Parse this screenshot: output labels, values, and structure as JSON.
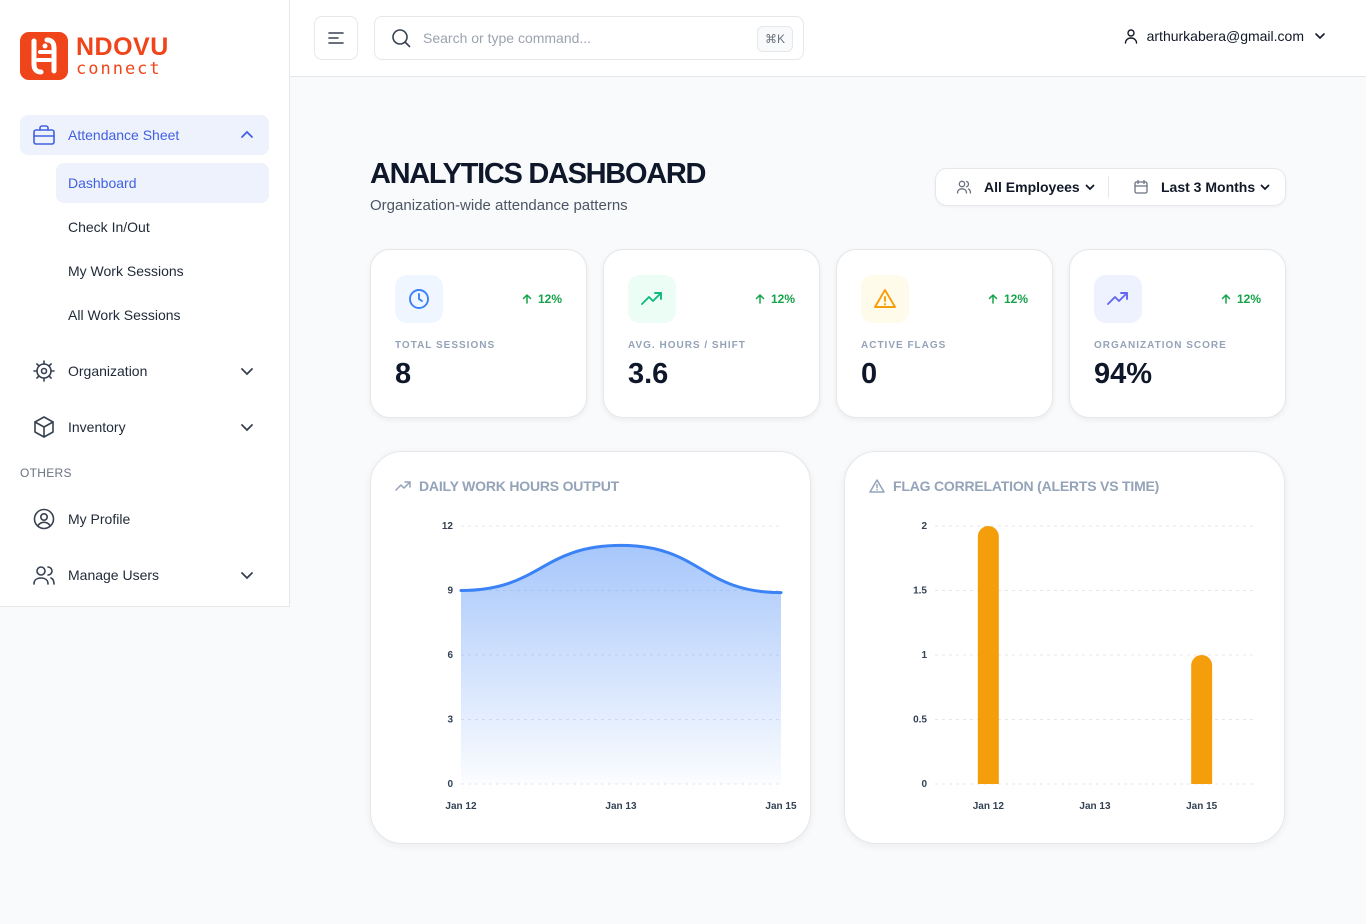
{
  "brand": {
    "name": "NDOVU",
    "sub": "connect",
    "color": "#f0441a"
  },
  "sidebar": {
    "attendance": {
      "label": "Attendance Sheet",
      "icon": "briefcase-icon",
      "expanded": true
    },
    "sub_items": [
      {
        "label": "Dashboard",
        "active": true
      },
      {
        "label": "Check In/Out"
      },
      {
        "label": "My Work Sessions"
      },
      {
        "label": "All Work Sessions"
      }
    ],
    "organization": {
      "label": "Organization",
      "icon": "gear-icon"
    },
    "inventory": {
      "label": "Inventory",
      "icon": "package-icon"
    },
    "others_label": "OTHERS",
    "profile": {
      "label": "My Profile",
      "icon": "user-circle-icon"
    },
    "manage_users": {
      "label": "Manage Users",
      "icon": "users-icon"
    }
  },
  "header": {
    "search_placeholder": "Search or type command...",
    "shortcut": "⌘K",
    "user_email": "arthurkabera@gmail.com"
  },
  "page": {
    "title": "ANALYTICS DASHBOARD",
    "subtitle": "Organization-wide attendance patterns",
    "filters": {
      "employees": "All Employees",
      "range": "Last 3 Months"
    }
  },
  "stats": [
    {
      "label": "TOTAL SESSIONS",
      "value": "8",
      "trend": "12%",
      "icon": "clock-icon",
      "icon_color": "#3b82f6",
      "icon_bg": "#eff6ff"
    },
    {
      "label": "AVG. HOURS / SHIFT",
      "value": "3.6",
      "trend": "12%",
      "icon": "trending-up-icon",
      "icon_color": "#10b981",
      "icon_bg": "#ecfdf5"
    },
    {
      "label": "ACTIVE FLAGS",
      "value": "0",
      "trend": "12%",
      "icon": "alert-triangle-icon",
      "icon_color": "#f59e0b",
      "icon_bg": "#fffbeb"
    },
    {
      "label": "ORGANIZATION SCORE",
      "value": "94%",
      "trend": "12%",
      "icon": "trending-up-icon",
      "icon_color": "#6366f1",
      "icon_bg": "#eef2ff"
    }
  ],
  "chart_data": [
    {
      "type": "area",
      "title": "DAILY WORK HOURS OUTPUT",
      "x": [
        "Jan 12",
        "Jan 13",
        "Jan 15"
      ],
      "values": [
        9,
        11.1,
        8.9
      ],
      "yticks": [
        0,
        3,
        6,
        9,
        12
      ],
      "ylim": [
        0,
        12
      ],
      "grid": true,
      "color": "#3b82f6"
    },
    {
      "type": "bar",
      "title": "FLAG CORRELATION (ALERTS VS TIME)",
      "categories": [
        "Jan 12",
        "Jan 13",
        "Jan 15"
      ],
      "values": [
        2,
        0,
        1
      ],
      "yticks": [
        "0",
        "0.5",
        "1",
        "1.5",
        "2"
      ],
      "ylim": [
        0,
        2
      ],
      "grid": true,
      "color": "#f59e0b"
    }
  ]
}
